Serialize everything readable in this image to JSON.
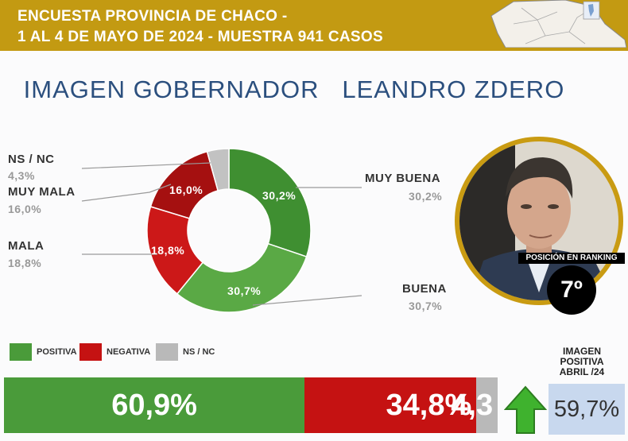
{
  "header": {
    "line1": "ENCUESTA PROVINCIA DE CHACO -",
    "line2": "1 AL 4 DE MAYO DE 2024 - MUESTRA 941 CASOS"
  },
  "title": "IMAGEN GOBERNADOR   LEANDRO ZDERO",
  "colors": {
    "gold": "#c39a12",
    "positive": "#4a9b3a",
    "negative": "#c51212",
    "nsnc": "#b9b9b9",
    "title_blue": "#2b4f7e"
  },
  "chart_data": [
    {
      "type": "pie",
      "variant": "donut",
      "slices": [
        {
          "label": "MUY BUENA",
          "value": 30.2,
          "value_text": "30,2%",
          "color": "#3f8f31"
        },
        {
          "label": "BUENA",
          "value": 30.7,
          "value_text": "30,7%",
          "color": "#5aa945"
        },
        {
          "label": "MALA",
          "value": 18.8,
          "value_text": "18,8%",
          "color": "#cc1818"
        },
        {
          "label": "MUY MALA",
          "value": 16.0,
          "value_text": "16,0%",
          "color": "#a51010"
        },
        {
          "label": "NS / NC",
          "value": 4.3,
          "value_text": "4,3%",
          "color": "#c2c2c2"
        }
      ]
    },
    {
      "type": "bar",
      "orientation": "horizontal-stacked",
      "legend": [
        "POSITIVA",
        "NEGATIVA",
        "NS / NC"
      ],
      "legend_placement": "bottom-left",
      "segments": [
        {
          "name": "POSITIVA",
          "value": 60.9,
          "value_text": "60,9%",
          "color": "#4a9b3a"
        },
        {
          "name": "NEGATIVA",
          "value": 34.8,
          "value_text": "34,8%",
          "color": "#c51212"
        },
        {
          "name": "NS / NC",
          "value": 4.3,
          "value_text": "4,3",
          "color": "#b9b9b9"
        }
      ]
    }
  ],
  "ranking": {
    "caption": "POSICIÓN EN RANKING",
    "position": "7º"
  },
  "previous": {
    "label_line1": "IMAGEN",
    "label_line2": "POSITIVA",
    "label_line3": "ABRIL /24",
    "value": "59,7%",
    "trend_icon": "arrow-up-icon"
  }
}
